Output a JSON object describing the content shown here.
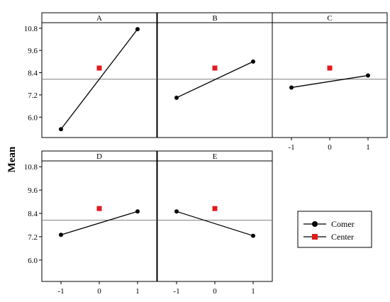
{
  "chart_data": {
    "type": "line",
    "ylabel": "Mean",
    "ylim": [
      4.9,
      11.1
    ],
    "yticks": [
      6.0,
      7.2,
      8.4,
      9.6,
      10.8
    ],
    "ytick_labels": [
      "6.0",
      "7.2",
      "8.4",
      "9.6",
      "10.8"
    ],
    "xticks": [
      -1,
      0,
      1
    ],
    "xtick_labels": [
      "-1",
      "0",
      "1"
    ],
    "reference_line": 8.05,
    "center_value": 8.65,
    "legend": {
      "placement": "right",
      "corner_label": "Comer",
      "center_label": "Center"
    },
    "colors": {
      "corner": "#000000",
      "center": "#e31a1c",
      "reference": "#808080"
    },
    "panels": [
      {
        "name": "A",
        "corner": [
          [
            -1,
            5.35
          ],
          [
            1,
            10.75
          ]
        ]
      },
      {
        "name": "B",
        "corner": [
          [
            -1,
            7.05
          ],
          [
            1,
            9.0
          ]
        ]
      },
      {
        "name": "C",
        "corner": [
          [
            -1,
            7.6
          ],
          [
            1,
            8.25
          ]
        ]
      },
      {
        "name": "D",
        "corner": [
          [
            -1,
            7.3
          ],
          [
            1,
            8.5
          ]
        ]
      },
      {
        "name": "E",
        "corner": [
          [
            -1,
            8.5
          ],
          [
            1,
            7.25
          ]
        ]
      }
    ]
  }
}
